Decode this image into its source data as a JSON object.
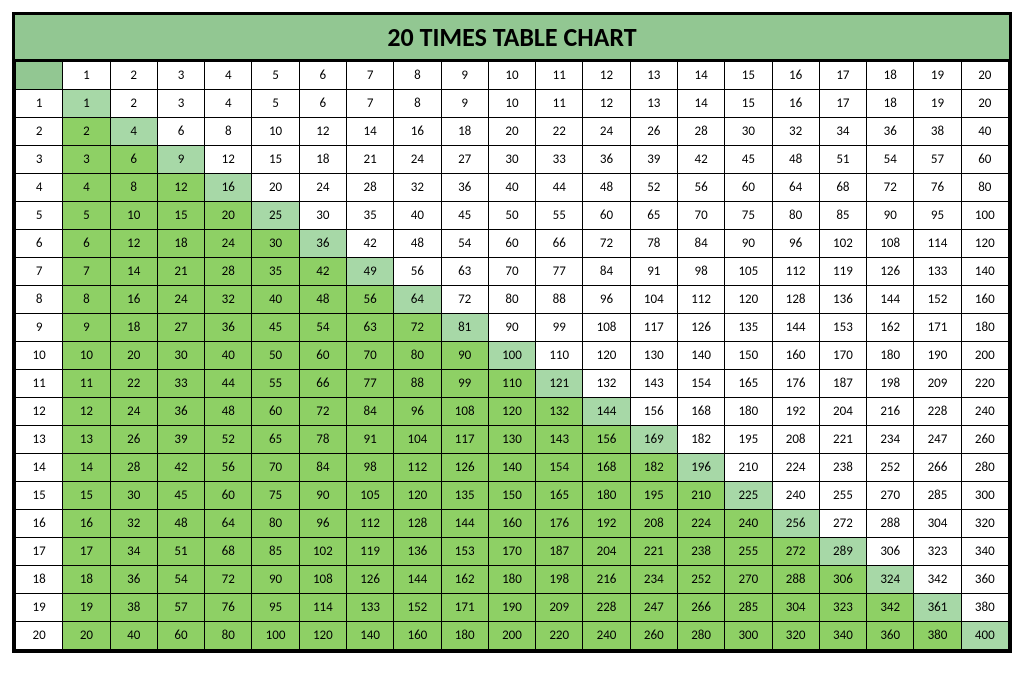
{
  "title": "20 TIMES TABLE CHART",
  "size": 20,
  "title_fontsize": 26,
  "title_bg": "#92c792",
  "corner_bg": "#92c792",
  "cell_bg_default": "#ffffff",
  "cell_bg_lower": "#8ed065",
  "cell_bg_diagonal": "#a7d8a7",
  "border_color": "#000000",
  "font_family": "Calibri, Arial, sans-serif",
  "cell_fontsize": 13,
  "col_headers": [
    1,
    2,
    3,
    4,
    5,
    6,
    7,
    8,
    9,
    10,
    11,
    12,
    13,
    14,
    15,
    16,
    17,
    18,
    19,
    20
  ],
  "row_headers": [
    1,
    2,
    3,
    4,
    5,
    6,
    7,
    8,
    9,
    10,
    11,
    12,
    13,
    14,
    15,
    16,
    17,
    18,
    19,
    20
  ],
  "rows": [
    [
      1,
      2,
      3,
      4,
      5,
      6,
      7,
      8,
      9,
      10,
      11,
      12,
      13,
      14,
      15,
      16,
      17,
      18,
      19,
      20
    ],
    [
      2,
      4,
      6,
      8,
      10,
      12,
      14,
      16,
      18,
      20,
      22,
      24,
      26,
      28,
      30,
      32,
      34,
      36,
      38,
      40
    ],
    [
      3,
      6,
      9,
      12,
      15,
      18,
      21,
      24,
      27,
      30,
      33,
      36,
      39,
      42,
      45,
      48,
      51,
      54,
      57,
      60
    ],
    [
      4,
      8,
      12,
      16,
      20,
      24,
      28,
      32,
      36,
      40,
      44,
      48,
      52,
      56,
      60,
      64,
      68,
      72,
      76,
      80
    ],
    [
      5,
      10,
      15,
      20,
      25,
      30,
      35,
      40,
      45,
      50,
      55,
      60,
      65,
      70,
      75,
      80,
      85,
      90,
      95,
      100
    ],
    [
      6,
      12,
      18,
      24,
      30,
      36,
      42,
      48,
      54,
      60,
      66,
      72,
      78,
      84,
      90,
      96,
      102,
      108,
      114,
      120
    ],
    [
      7,
      14,
      21,
      28,
      35,
      42,
      49,
      56,
      63,
      70,
      77,
      84,
      91,
      98,
      105,
      112,
      119,
      126,
      133,
      140
    ],
    [
      8,
      16,
      24,
      32,
      40,
      48,
      56,
      64,
      72,
      80,
      88,
      96,
      104,
      112,
      120,
      128,
      136,
      144,
      152,
      160
    ],
    [
      9,
      18,
      27,
      36,
      45,
      54,
      63,
      72,
      81,
      90,
      99,
      108,
      117,
      126,
      135,
      144,
      153,
      162,
      171,
      180
    ],
    [
      10,
      20,
      30,
      40,
      50,
      60,
      70,
      80,
      90,
      100,
      110,
      120,
      130,
      140,
      150,
      160,
      170,
      180,
      190,
      200
    ],
    [
      11,
      22,
      33,
      44,
      55,
      66,
      77,
      88,
      99,
      110,
      121,
      132,
      143,
      154,
      165,
      176,
      187,
      198,
      209,
      220
    ],
    [
      12,
      24,
      36,
      48,
      60,
      72,
      84,
      96,
      108,
      120,
      132,
      144,
      156,
      168,
      180,
      192,
      204,
      216,
      228,
      240
    ],
    [
      13,
      26,
      39,
      52,
      65,
      78,
      91,
      104,
      117,
      130,
      143,
      156,
      169,
      182,
      195,
      208,
      221,
      234,
      247,
      260
    ],
    [
      14,
      28,
      42,
      56,
      70,
      84,
      98,
      112,
      126,
      140,
      154,
      168,
      182,
      196,
      210,
      224,
      238,
      252,
      266,
      280
    ],
    [
      15,
      30,
      45,
      60,
      75,
      90,
      105,
      120,
      135,
      150,
      165,
      180,
      195,
      210,
      225,
      240,
      255,
      270,
      285,
      300
    ],
    [
      16,
      32,
      48,
      64,
      80,
      96,
      112,
      128,
      144,
      160,
      176,
      192,
      208,
      224,
      240,
      256,
      272,
      288,
      304,
      320
    ],
    [
      17,
      34,
      51,
      68,
      85,
      102,
      119,
      136,
      153,
      170,
      187,
      204,
      221,
      238,
      255,
      272,
      289,
      306,
      323,
      340
    ],
    [
      18,
      36,
      54,
      72,
      90,
      108,
      126,
      144,
      162,
      180,
      198,
      216,
      234,
      252,
      270,
      288,
      306,
      324,
      342,
      360
    ],
    [
      19,
      38,
      57,
      76,
      95,
      114,
      133,
      152,
      171,
      190,
      209,
      228,
      247,
      266,
      285,
      304,
      323,
      342,
      361,
      380
    ],
    [
      20,
      40,
      60,
      80,
      100,
      120,
      140,
      160,
      180,
      200,
      220,
      240,
      260,
      280,
      300,
      320,
      340,
      360,
      380,
      400
    ]
  ]
}
